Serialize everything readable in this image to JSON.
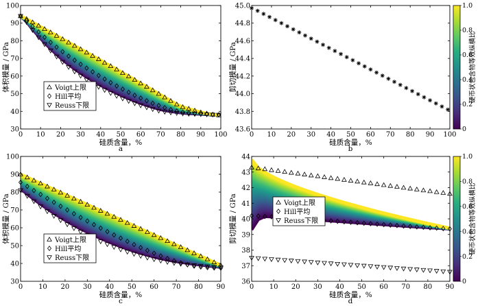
{
  "figure": {
    "colorbar_label": "硬币状包含物等效纵横比",
    "colorbar_ticks": [
      "0",
      "0.2",
      "0.4",
      "0.6",
      "0.8",
      "1.0"
    ]
  },
  "chart_data": [
    {
      "id": "a",
      "type": "area",
      "panel_label": "a",
      "xlabel": "硅质含量，%",
      "ylabel": "体积模量 / GPa",
      "xlim": [
        0,
        100
      ],
      "ylim": [
        30,
        100
      ],
      "xticks": [
        "0",
        "10",
        "20",
        "30",
        "40",
        "50",
        "60",
        "70",
        "80",
        "90",
        "100"
      ],
      "yticks": [
        "30",
        "40",
        "50",
        "60",
        "70",
        "80",
        "90",
        "100"
      ],
      "legend": [
        "Voigt上限",
        "Hill平均",
        "Reuss下限"
      ],
      "x": [
        0,
        3,
        6,
        9,
        12,
        15,
        18,
        21,
        24,
        27,
        30,
        33,
        36,
        39,
        42,
        45,
        48,
        51,
        54,
        57,
        60,
        63,
        66,
        69,
        72,
        75,
        78,
        81,
        84,
        87,
        90,
        93,
        96,
        99
      ],
      "series": [
        {
          "name": "Voigt上限",
          "marker": "triangle-up",
          "values": [
            94.0,
            92.4,
            90.5,
            88.6,
            86.7,
            84.8,
            82.9,
            81.0,
            79.1,
            77.2,
            75.3,
            73.4,
            71.5,
            69.6,
            67.6,
            65.7,
            63.8,
            61.8,
            59.9,
            57.9,
            55.9,
            54.0,
            52.0,
            50.0,
            48.0,
            46.0,
            44.0,
            42.5,
            41.5,
            40.5,
            39.5,
            38.8,
            38.2,
            37.8
          ]
        },
        {
          "name": "Hill平均",
          "marker": "diamond",
          "values": [
            94.0,
            91.5,
            88.2,
            85.0,
            82.0,
            79.1,
            76.4,
            73.8,
            71.3,
            69.0,
            66.7,
            64.5,
            62.4,
            60.3,
            58.3,
            56.3,
            54.4,
            52.6,
            50.8,
            49.1,
            47.5,
            46.0,
            44.6,
            43.3,
            42.1,
            41.0,
            40.2,
            39.6,
            39.2,
            38.9,
            38.6,
            38.4,
            38.2,
            38.1
          ]
        },
        {
          "name": "Reuss下限",
          "marker": "triangle-down",
          "values": [
            94.0,
            90.5,
            86.0,
            81.9,
            78.0,
            74.4,
            71.0,
            67.9,
            65.1,
            62.5,
            60.1,
            57.9,
            55.8,
            53.8,
            52.0,
            50.3,
            48.7,
            47.2,
            45.8,
            44.5,
            43.3,
            42.2,
            41.2,
            40.3,
            39.7,
            39.3,
            39.0,
            38.7,
            38.5,
            38.4,
            38.3,
            38.2,
            38.1,
            38.0
          ]
        }
      ]
    },
    {
      "id": "b",
      "type": "scatter",
      "panel_label": "b",
      "xlabel": "硅质含量，%",
      "ylabel": "剪切模量 / GPa",
      "xlim": [
        0,
        100
      ],
      "ylim": [
        43.6,
        45.0
      ],
      "xticks": [
        "0",
        "10",
        "20",
        "30",
        "40",
        "50",
        "60",
        "70",
        "80",
        "90",
        "100"
      ],
      "yticks": [
        "43.6",
        "43.8",
        "44.0",
        "44.2",
        "44.4",
        "44.6",
        "44.8",
        "45.0"
      ],
      "x": [
        0,
        3,
        6,
        9,
        12,
        15,
        18,
        21,
        24,
        27,
        30,
        33,
        36,
        39,
        42,
        45,
        48,
        51,
        54,
        57,
        60,
        63,
        66,
        69,
        72,
        75,
        78,
        81,
        84,
        87,
        90,
        93,
        96,
        99
      ],
      "series": [
        {
          "name": "剪切模量",
          "marker": "star",
          "values": [
            44.97,
            44.94,
            44.905,
            44.87,
            44.835,
            44.8,
            44.765,
            44.73,
            44.695,
            44.66,
            44.625,
            44.59,
            44.555,
            44.52,
            44.485,
            44.45,
            44.415,
            44.38,
            44.345,
            44.31,
            44.275,
            44.24,
            44.205,
            44.17,
            44.135,
            44.1,
            44.065,
            44.03,
            43.995,
            43.96,
            43.925,
            43.89,
            43.855,
            43.82
          ]
        }
      ]
    },
    {
      "id": "c",
      "type": "area",
      "panel_label": "c",
      "xlabel": "硅质含量，%",
      "ylabel": "体积模量 / GPa",
      "xlim": [
        0,
        90
      ],
      "ylim": [
        30,
        100
      ],
      "xticks": [
        "0",
        "10",
        "20",
        "30",
        "40",
        "50",
        "60",
        "70",
        "80",
        "90"
      ],
      "yticks": [
        "30",
        "40",
        "50",
        "60",
        "70",
        "80",
        "90",
        "100"
      ],
      "legend": [
        "Voigt上限",
        "Hill平均",
        "Reuss下限"
      ],
      "x": [
        0,
        3,
        6,
        9,
        12,
        15,
        18,
        21,
        24,
        27,
        30,
        33,
        36,
        39,
        42,
        45,
        48,
        51,
        54,
        57,
        60,
        63,
        66,
        69,
        72,
        75,
        78,
        81,
        84,
        87,
        90
      ],
      "series": [
        {
          "name": "Voigt上限",
          "marker": "triangle-up",
          "values": [
            90.0,
            88.3,
            86.6,
            84.9,
            83.2,
            81.5,
            79.8,
            78.1,
            76.4,
            74.7,
            73.0,
            71.3,
            69.6,
            67.9,
            66.2,
            64.5,
            62.8,
            61.1,
            59.4,
            57.7,
            56.0,
            54.3,
            52.6,
            50.9,
            49.2,
            47.5,
            45.8,
            44.1,
            42.4,
            40.7,
            39.0
          ]
        },
        {
          "name": "Hill平均",
          "marker": "diamond",
          "values": [
            85.5,
            83.2,
            80.9,
            78.7,
            76.5,
            74.3,
            72.1,
            70.0,
            67.9,
            65.8,
            63.8,
            61.8,
            59.8,
            57.9,
            56.0,
            54.2,
            52.4,
            50.6,
            48.9,
            47.3,
            45.7,
            44.2,
            42.8,
            41.5,
            40.3,
            39.3,
            38.5,
            38.0,
            37.7,
            37.5,
            37.4
          ]
        },
        {
          "name": "Reuss下限",
          "marker": "triangle-down",
          "values": [
            81.0,
            77.8,
            74.8,
            71.9,
            69.2,
            66.6,
            64.2,
            61.9,
            59.7,
            57.7,
            55.8,
            54.0,
            52.3,
            50.7,
            49.2,
            47.8,
            46.5,
            45.3,
            44.2,
            43.2,
            42.3,
            41.5,
            40.8,
            40.2,
            39.7,
            39.3,
            38.9,
            38.6,
            38.3,
            38.0,
            37.8
          ]
        }
      ]
    },
    {
      "id": "d",
      "type": "area",
      "panel_label": "d",
      "xlabel": "硅质含量，%",
      "ylabel": "剪切模量 / GPa",
      "xlim": [
        0,
        90
      ],
      "ylim": [
        36,
        44
      ],
      "xticks": [
        "0",
        "10",
        "20",
        "30",
        "40",
        "50",
        "60",
        "70",
        "80",
        "90"
      ],
      "yticks": [
        "36",
        "37",
        "38",
        "39",
        "40",
        "41",
        "42",
        "43",
        "44"
      ],
      "legend": [
        "Voigt上限",
        "Hill平均",
        "Reuss下限"
      ],
      "x": [
        0,
        3,
        6,
        9,
        12,
        15,
        18,
        21,
        24,
        27,
        30,
        33,
        36,
        39,
        42,
        45,
        48,
        51,
        54,
        57,
        60,
        63,
        66,
        69,
        72,
        75,
        78,
        81,
        84,
        87,
        90
      ],
      "series": [
        {
          "name": "Voigt上限",
          "marker": "triangle-up",
          "values": [
            43.3,
            43.24,
            43.19,
            43.13,
            43.08,
            43.02,
            42.96,
            42.91,
            42.85,
            42.79,
            42.74,
            42.68,
            42.62,
            42.57,
            42.51,
            42.45,
            42.4,
            42.34,
            42.29,
            42.23,
            42.17,
            42.12,
            42.06,
            42.0,
            41.95,
            41.89,
            41.83,
            41.78,
            41.72,
            41.67,
            41.61
          ]
        },
        {
          "name": "Hill平均",
          "marker": "diamond",
          "values": [
            40.2,
            40.18,
            40.15,
            40.13,
            40.1,
            40.07,
            40.04,
            40.02,
            39.99,
            39.96,
            39.93,
            39.9,
            39.87,
            39.84,
            39.81,
            39.78,
            39.75,
            39.72,
            39.69,
            39.66,
            39.63,
            39.6,
            39.57,
            39.54,
            39.51,
            39.48,
            39.46,
            39.43,
            39.41,
            39.38,
            39.36
          ]
        },
        {
          "name": "Reuss下限",
          "marker": "triangle-down",
          "values": [
            37.5,
            37.47,
            37.44,
            37.41,
            37.38,
            37.35,
            37.32,
            37.29,
            37.26,
            37.23,
            37.2,
            37.17,
            37.14,
            37.11,
            37.08,
            37.05,
            37.02,
            36.99,
            36.96,
            36.93,
            36.9,
            36.87,
            36.84,
            36.81,
            36.78,
            36.75,
            36.72,
            36.69,
            36.66,
            36.63,
            36.6
          ]
        }
      ]
    }
  ]
}
